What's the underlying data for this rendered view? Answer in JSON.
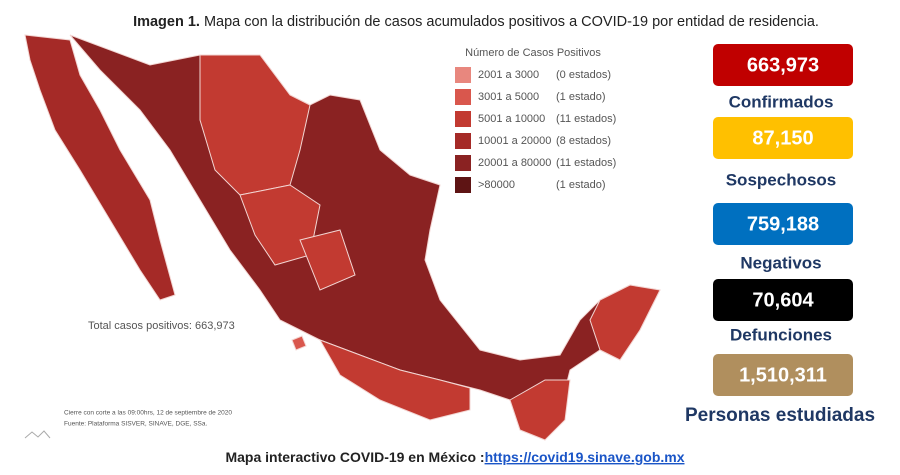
{
  "title": {
    "label": "Imagen 1.",
    "text": "Mapa con la distribución de casos acumulados positivos a COVID-19 por entidad de residencia."
  },
  "legend": {
    "title": "Número de Casos Positivos",
    "items": [
      {
        "range": "2001 a 3000",
        "count": "(0 estados)",
        "color": "#e8877e"
      },
      {
        "range": "3001 a 5000",
        "count": "(1 estado)",
        "color": "#d9574d"
      },
      {
        "range": "5001 a 10000",
        "count": "(11 estados)",
        "color": "#c23a31"
      },
      {
        "range": "10001 a 20000",
        "count": "(8 estados)",
        "color": "#a52a27"
      },
      {
        "range": "20001 a 80000",
        "count": "(11 estados)",
        "color": "#8a2222"
      },
      {
        "range": ">80000",
        "count": "(1 estado)",
        "color": "#5e1414"
      }
    ]
  },
  "total": "Total casos positivos: 663,973",
  "stats": [
    {
      "value": "663,973",
      "label": "Confirmados",
      "color": "#c00000"
    },
    {
      "value": "87,150",
      "label": "Sospechosos",
      "color": "#ffc000"
    },
    {
      "value": "759,188",
      "label": "Negativos",
      "color": "#0070c0"
    },
    {
      "value": "70,604",
      "label": "Defunciones",
      "color": "#000000"
    },
    {
      "value": "1,510,311",
      "label": "Personas estudiadas",
      "color": "#b08f5e"
    }
  ],
  "notes": [
    "Cierre con corte a las 09:00hrs, 12 de septiembre de 2020",
    "Fuente: Plataforma SISVER, SINAVE, DGE, SSa."
  ],
  "footer": {
    "text": "Mapa interactivo COVID-19 en México :",
    "link": "https://covid19.sinave.gob.mx"
  }
}
